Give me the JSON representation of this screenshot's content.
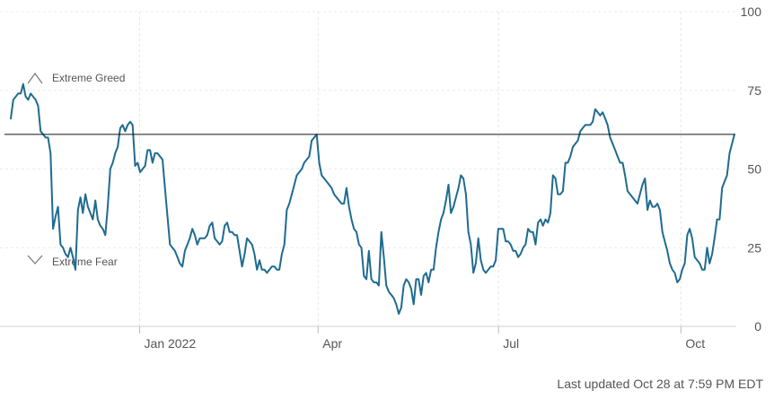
{
  "chart_data": {
    "type": "line",
    "title": "",
    "xlabel": "",
    "ylabel": "",
    "ylim": [
      0,
      100
    ],
    "y_ticks": [
      "0",
      "25",
      "50",
      "75",
      "100"
    ],
    "x_tick_labels": [
      "Jan 2022",
      "Apr",
      "Jul",
      "Oct"
    ],
    "grid": "vertical dashed at month ticks",
    "current_value": 61,
    "zones": {
      "greed_label": "Extreme Greed",
      "fear_label": "Extreme Fear"
    },
    "series": [
      {
        "color": "#1f6b8f",
        "x_start": "2021-10-28",
        "x_end": "2022-10-28",
        "values": [
          66,
          72,
          73,
          74,
          74,
          77,
          73,
          72,
          74,
          73,
          72,
          70,
          62,
          61,
          60,
          60,
          55,
          31,
          35,
          38,
          26,
          25,
          23,
          22,
          25,
          22,
          18,
          37,
          41,
          36,
          42,
          38,
          36,
          34,
          40,
          34,
          32,
          31,
          29,
          38,
          50,
          52,
          55,
          57,
          63,
          64,
          62,
          64,
          65,
          64,
          51,
          52,
          49,
          50,
          51,
          56,
          56,
          52,
          55,
          55,
          54,
          53,
          44,
          35,
          26,
          25,
          24,
          22,
          20,
          19,
          24,
          26,
          28,
          31,
          29,
          26,
          28,
          28,
          28,
          29,
          32,
          33,
          28,
          27,
          26,
          27,
          32,
          33,
          30,
          30,
          29,
          29,
          24,
          19,
          23,
          28,
          27,
          26,
          23,
          18,
          21,
          18,
          18,
          17,
          18,
          19,
          19,
          18,
          18,
          23,
          26,
          37,
          39,
          42,
          45,
          48,
          49,
          50,
          52,
          53,
          54,
          59,
          60,
          61,
          52,
          48,
          47,
          46,
          45,
          44,
          42,
          41,
          40,
          39,
          39,
          44,
          38,
          34,
          31,
          30,
          26,
          25,
          16,
          15,
          24,
          15,
          14,
          14,
          13,
          30,
          22,
          13,
          11,
          10,
          9,
          7,
          4,
          6,
          13,
          15,
          14,
          12,
          7,
          15,
          15,
          10,
          16,
          17,
          14,
          18,
          18,
          25,
          30,
          34,
          36,
          40,
          45,
          36,
          38,
          41,
          44,
          48,
          47,
          42,
          30,
          26,
          17,
          20,
          28,
          21,
          18,
          17,
          18,
          19,
          19,
          21,
          31,
          31,
          31,
          27,
          27,
          26,
          24,
          24,
          22,
          23,
          25,
          26,
          31,
          30,
          30,
          26,
          33,
          34,
          32,
          34,
          33,
          36,
          48,
          47,
          42,
          42,
          43,
          52,
          52,
          54,
          57,
          58,
          59,
          62,
          63,
          64,
          64,
          64,
          65,
          69,
          68,
          67,
          68,
          66,
          64,
          60,
          58,
          56,
          54,
          52,
          52,
          48,
          43,
          42,
          41,
          40,
          39,
          42,
          45,
          47,
          37,
          40,
          38,
          38,
          39,
          37,
          30,
          27,
          24,
          20,
          18,
          17,
          14,
          15,
          18,
          20,
          29,
          31,
          28,
          22,
          21,
          20,
          18,
          18,
          25,
          20,
          23,
          28,
          34,
          34,
          44,
          46,
          48,
          55,
          58,
          61
        ]
      }
    ]
  },
  "footer": {
    "last_updated": "Last updated Oct 28 at 7:59 PM EDT"
  }
}
